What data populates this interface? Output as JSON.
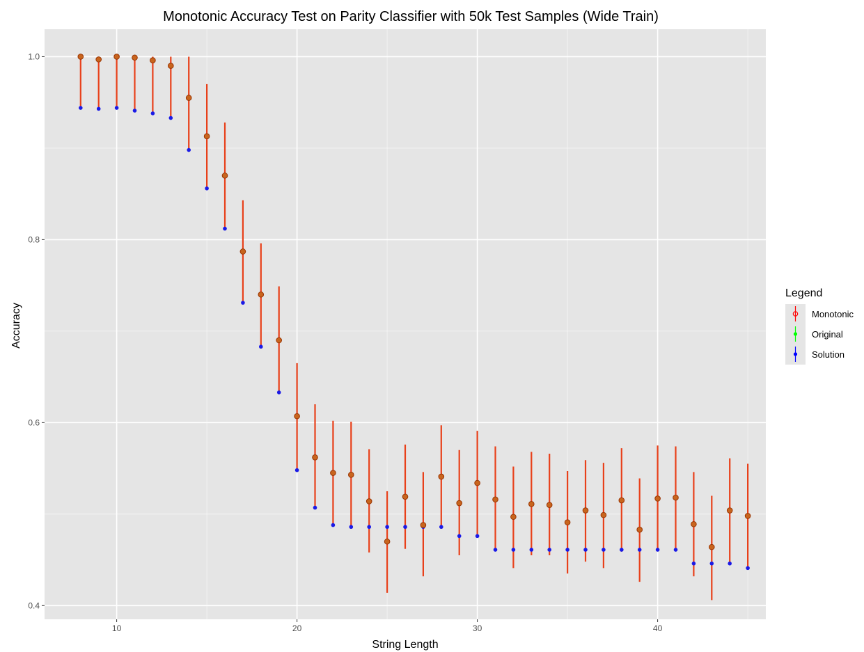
{
  "chart_data": {
    "type": "scatter",
    "title": "Monotonic Accuracy Test on Parity Classifier with 50k Test Samples (Wide Train)",
    "xlabel": "String Length",
    "ylabel": "Accuracy",
    "xlim": [
      6,
      46
    ],
    "ylim": [
      0.385,
      1.03
    ],
    "xticks": [
      10,
      20,
      30,
      40
    ],
    "yticks": [
      0.4,
      0.6,
      0.8,
      1.0
    ],
    "xtick_labels": [
      "10",
      "20",
      "30",
      "40"
    ],
    "ytick_labels": [
      "0.4",
      "0.6",
      "0.8",
      "1.0"
    ],
    "grid": true,
    "legend": {
      "title": "Legend",
      "position": "right",
      "entries": [
        {
          "name": "Monotonic",
          "color": "#ff0000",
          "shape": "open-circle"
        },
        {
          "name": "Original",
          "color": "#00ff00",
          "shape": "filled-circle"
        },
        {
          "name": "Solution",
          "color": "#0000ff",
          "shape": "filled-circle"
        }
      ]
    },
    "colors": {
      "monotonic_point_fill": "#c8651e",
      "monotonic_point_edge": "#993300",
      "monotonic_errorbar": "#e8401a",
      "solution": "#1a1ae6",
      "panel_bg": "#e5e5e5",
      "grid": "#ffffff"
    },
    "x": [
      8,
      9,
      10,
      11,
      12,
      13,
      14,
      15,
      16,
      17,
      18,
      19,
      20,
      21,
      22,
      23,
      24,
      25,
      26,
      27,
      28,
      29,
      30,
      31,
      32,
      33,
      34,
      35,
      36,
      37,
      38,
      39,
      40,
      41,
      42,
      43,
      44,
      45
    ],
    "series": [
      {
        "name": "Monotonic",
        "values": [
          1.0,
          0.997,
          1.0,
          0.999,
          0.996,
          0.99,
          0.955,
          0.913,
          0.87,
          0.787,
          0.74,
          0.69,
          0.607,
          0.562,
          0.545,
          0.543,
          0.514,
          0.47,
          0.519,
          0.488,
          0.541,
          0.512,
          0.534,
          0.516,
          0.497,
          0.511,
          0.51,
          0.491,
          0.504,
          0.499,
          0.515,
          0.483,
          0.517,
          0.518,
          0.489,
          0.464,
          0.504,
          0.498
        ],
        "err_low": [
          0.944,
          0.943,
          0.944,
          0.941,
          0.938,
          0.933,
          0.898,
          0.856,
          0.812,
          0.731,
          0.683,
          0.633,
          0.548,
          0.507,
          0.488,
          0.486,
          0.458,
          0.414,
          0.462,
          0.432,
          0.485,
          0.455,
          0.477,
          0.46,
          0.441,
          0.455,
          0.455,
          0.435,
          0.448,
          0.441,
          0.459,
          0.426,
          0.46,
          0.461,
          0.432,
          0.406,
          0.446,
          0.441
        ],
        "err_high": [
          1.0,
          1.0,
          1.0,
          1.0,
          1.0,
          1.0,
          1.0,
          0.97,
          0.928,
          0.843,
          0.796,
          0.749,
          0.665,
          0.62,
          0.602,
          0.601,
          0.571,
          0.525,
          0.576,
          0.546,
          0.597,
          0.57,
          0.591,
          0.574,
          0.552,
          0.568,
          0.566,
          0.547,
          0.559,
          0.556,
          0.572,
          0.539,
          0.575,
          0.574,
          0.546,
          0.52,
          0.561,
          0.555
        ]
      },
      {
        "name": "Original",
        "values": [
          1.0,
          0.997,
          1.0,
          0.999,
          0.996,
          0.99,
          0.955,
          0.913,
          0.87,
          0.787,
          0.74,
          0.69,
          0.607,
          0.562,
          0.545,
          0.543,
          0.514,
          0.47,
          0.519,
          0.488,
          0.541,
          0.512,
          0.534,
          0.516,
          0.497,
          0.511,
          0.51,
          0.491,
          0.504,
          0.499,
          0.515,
          0.483,
          0.517,
          0.518,
          0.489,
          0.464,
          0.504,
          0.498
        ]
      },
      {
        "name": "Solution",
        "values": [
          0.944,
          0.943,
          0.944,
          0.941,
          0.938,
          0.933,
          0.898,
          0.856,
          0.812,
          0.731,
          0.683,
          0.633,
          0.548,
          0.507,
          0.488,
          0.486,
          0.486,
          0.486,
          0.486,
          0.486,
          0.486,
          0.476,
          0.476,
          0.461,
          0.461,
          0.461,
          0.461,
          0.461,
          0.461,
          0.461,
          0.461,
          0.461,
          0.461,
          0.461,
          0.446,
          0.446,
          0.446,
          0.441
        ]
      }
    ]
  }
}
